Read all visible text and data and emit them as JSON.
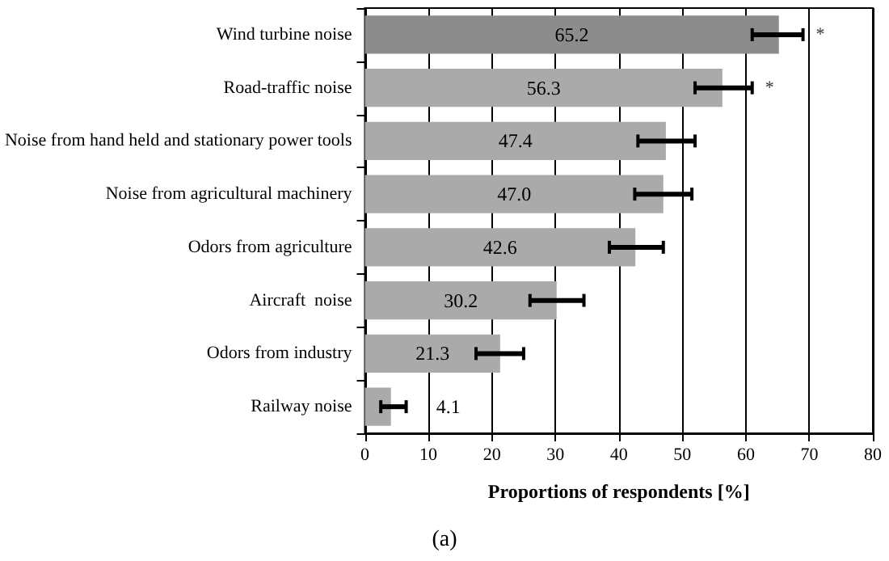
{
  "chart_data": {
    "type": "bar",
    "orientation": "horizontal",
    "categories": [
      "Wind turbine noise",
      "Road-traffic noise",
      "Noise from hand held and stationary power tools",
      "Noise from agricultural machinery",
      "Odors from agriculture",
      "Aircraft  noise",
      "Odors from industry",
      "Railway noise"
    ],
    "values": [
      65.2,
      56.3,
      47.4,
      47.0,
      42.6,
      30.2,
      21.3,
      4.1
    ],
    "colors": [
      "#8c8c8c",
      "#aaaaaa",
      "#aaaaaa",
      "#aaaaaa",
      "#aaaaaa",
      "#aaaaaa",
      "#aaaaaa",
      "#aaaaaa"
    ],
    "errors": [
      [
        61,
        69
      ],
      [
        52,
        61
      ],
      [
        43,
        52
      ],
      [
        42.5,
        51.5
      ],
      [
        38.5,
        47
      ],
      [
        26,
        34.5
      ],
      [
        17.5,
        25
      ],
      [
        2.5,
        6.5
      ]
    ],
    "value_labels": [
      "65.2",
      "56.3",
      "47.4",
      "47.0",
      "42.6",
      "30.2",
      "21.3",
      "4.1"
    ],
    "xlabel": "Proportions of respondents [%]",
    "xlim": [
      0,
      80
    ],
    "xticks": [
      0,
      10,
      20,
      30,
      40,
      50,
      60,
      70,
      80
    ],
    "grid": "x",
    "annotations": [
      "*",
      "*",
      "(a)"
    ]
  }
}
